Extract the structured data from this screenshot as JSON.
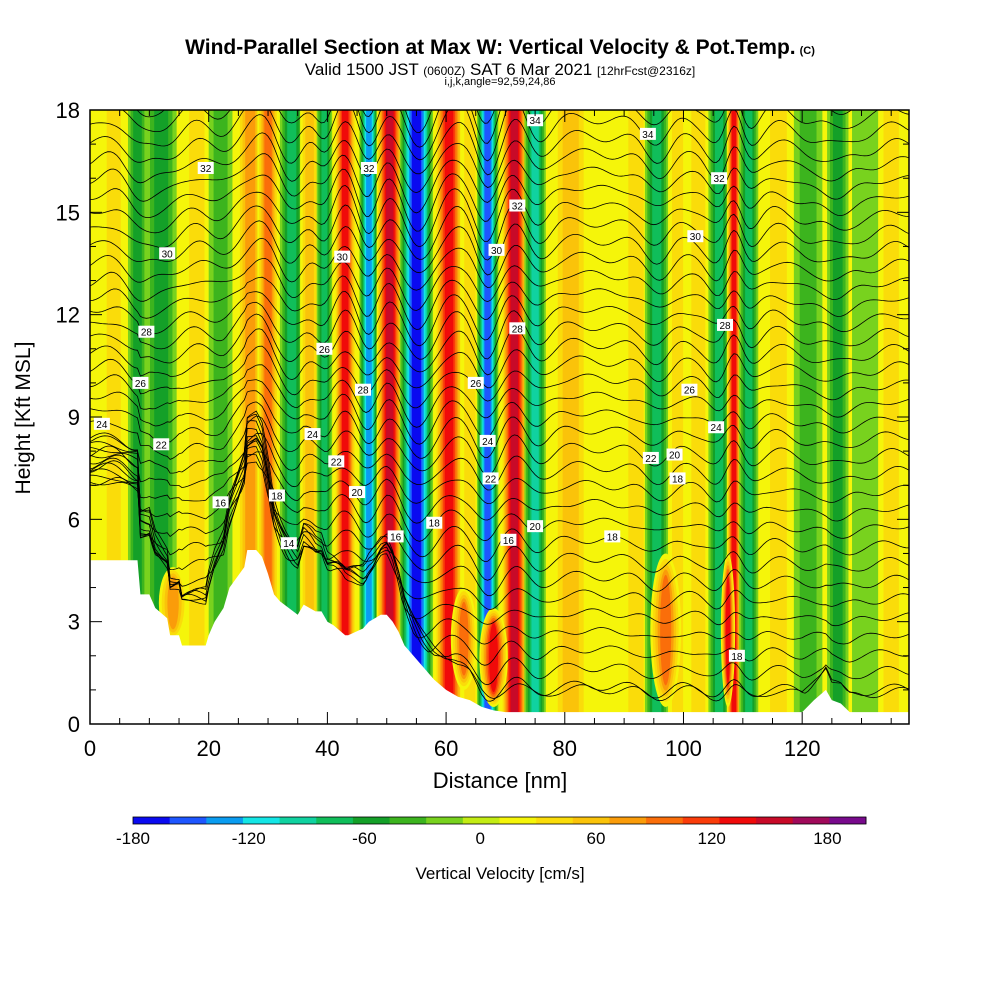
{
  "header": {
    "title": "Wind-Parallel Section at Max W: Vertical Velocity & Pot.Temp.",
    "copyright": "(C)",
    "valid_prefix": "Valid 1500 JST",
    "valid_utc": "(0600Z)",
    "valid_date": "SAT 6 Mar 2021",
    "valid_fcst": "[12hrFcst@2316z]",
    "ijk": "i,j,k,angle=92,59,24,86"
  },
  "chart_data": {
    "type": "heatmap",
    "xlabel": "Distance [nm]",
    "ylabel": "Height [Kft MSL]",
    "xlim": [
      0,
      138
    ],
    "ylim": [
      0,
      18
    ],
    "x_ticks": [
      0,
      20,
      40,
      60,
      80,
      100,
      120
    ],
    "y_ticks": [
      0,
      3,
      6,
      9,
      12,
      15,
      18
    ],
    "field": "Vertical Velocity",
    "colorbar": {
      "label": "Vertical Velocity [cm/s]",
      "range": [
        -180,
        200
      ],
      "tick_values": [
        -180,
        -120,
        -60,
        0,
        60,
        120,
        180
      ],
      "colors": [
        "#0a0af0",
        "#1e56ff",
        "#0a9cf0",
        "#14e6e6",
        "#10d2a0",
        "#10be5a",
        "#14a028",
        "#3cb41e",
        "#78d21e",
        "#c3ec14",
        "#f5f50a",
        "#fadc0a",
        "#fac30a",
        "#fa9c0a",
        "#fa6e0a",
        "#fa3c0a",
        "#f00a0a",
        "#c80a28",
        "#a00a5a",
        "#780a8c"
      ]
    },
    "terrain_profile": {
      "x": [
        0,
        8,
        8.5,
        10,
        11,
        13,
        13.5,
        15,
        15.5,
        19.5,
        20,
        21,
        22.5,
        23.5,
        26,
        26.5,
        28,
        29,
        30,
        31,
        32,
        33.5,
        35,
        36,
        38,
        39,
        40,
        41,
        43,
        43.5,
        46,
        47,
        49,
        50,
        51,
        52,
        53,
        54,
        56,
        58,
        60,
        62,
        64,
        66,
        68,
        70,
        72,
        80,
        90,
        100,
        110,
        120,
        122,
        124,
        125,
        126.5,
        128,
        130,
        138
      ],
      "y": [
        4.8,
        4.8,
        3.8,
        3.8,
        3.4,
        3.1,
        2.6,
        2.6,
        2.3,
        2.3,
        2.6,
        3.0,
        3.4,
        4.0,
        4.6,
        5.1,
        5.1,
        4.9,
        4.4,
        3.8,
        3.6,
        3.4,
        3.2,
        3.5,
        3.3,
        3.3,
        3.0,
        2.9,
        2.6,
        2.6,
        2.8,
        3.0,
        3.2,
        3.2,
        3.0,
        2.7,
        2.3,
        2.1,
        1.7,
        1.3,
        1.0,
        0.8,
        0.7,
        0.5,
        0.4,
        0.35,
        0.35,
        0.35,
        0.35,
        0.35,
        0.35,
        0.35,
        0.7,
        1.0,
        0.7,
        0.6,
        0.35,
        0.35,
        0.35
      ]
    },
    "velocity_columns": [
      {
        "x": 4,
        "width": 2.0,
        "value": 45
      },
      {
        "x": 8,
        "width": 1.6,
        "value": -50
      },
      {
        "x": 12,
        "width": 2.6,
        "value": -55
      },
      {
        "x": 18,
        "width": 2.2,
        "value": 40
      },
      {
        "x": 22,
        "width": 2.0,
        "value": -30
      },
      {
        "x": 27,
        "width": 2.2,
        "value": 75
      },
      {
        "x": 30,
        "width": 1.8,
        "value": 90
      },
      {
        "x": 34,
        "width": 2.0,
        "value": -85
      },
      {
        "x": 37,
        "width": 1.6,
        "value": 55
      },
      {
        "x": 39.5,
        "width": 1.3,
        "value": -70
      },
      {
        "x": 43,
        "width": 1.8,
        "value": 140
      },
      {
        "x": 47,
        "width": 1.6,
        "value": -140
      },
      {
        "x": 50.5,
        "width": 2.2,
        "value": 160
      },
      {
        "x": 55,
        "width": 2.8,
        "value": -180
      },
      {
        "x": 60.5,
        "width": 2.4,
        "value": 130
      },
      {
        "x": 64,
        "width": 1.6,
        "value": 40
      },
      {
        "x": 67,
        "width": 1.8,
        "value": -160
      },
      {
        "x": 71.5,
        "width": 2.2,
        "value": 150
      },
      {
        "x": 75,
        "width": 1.8,
        "value": -90
      },
      {
        "x": 81,
        "width": 3.0,
        "value": 55
      },
      {
        "x": 87,
        "width": 2.4,
        "value": 25
      },
      {
        "x": 92,
        "width": 2.2,
        "value": 45
      },
      {
        "x": 95.5,
        "width": 2.0,
        "value": -75
      },
      {
        "x": 99,
        "width": 1.6,
        "value": 40
      },
      {
        "x": 102.5,
        "width": 2.0,
        "value": 35
      },
      {
        "x": 106,
        "width": 1.8,
        "value": -80
      },
      {
        "x": 108.5,
        "width": 1.2,
        "value": 140
      },
      {
        "x": 111,
        "width": 1.6,
        "value": -70
      },
      {
        "x": 116,
        "width": 2.4,
        "value": 35
      },
      {
        "x": 121,
        "width": 2.4,
        "value": -35
      },
      {
        "x": 126,
        "width": 1.8,
        "value": -50
      },
      {
        "x": 131,
        "width": 2.6,
        "value": -25
      },
      {
        "x": 135,
        "width": 2.2,
        "value": 30
      }
    ],
    "low_level_updrafts": [
      {
        "x": 68,
        "width": 2.4,
        "y0": 0.5,
        "y1": 3.4,
        "value": 130
      },
      {
        "x": 97,
        "width": 2.6,
        "y0": 0.5,
        "y1": 5.0,
        "value": 100
      },
      {
        "x": 107.5,
        "width": 1.2,
        "y0": 0.5,
        "y1": 5.0,
        "value": 130
      },
      {
        "x": 14,
        "width": 2.4,
        "y0": 2.5,
        "y1": 4.6,
        "value": 85
      },
      {
        "x": 63,
        "width": 2.2,
        "y0": 1.0,
        "y1": 4.0,
        "value": 95
      }
    ],
    "contour_labels": [
      {
        "x": 19.5,
        "y": 16.3,
        "text": "32"
      },
      {
        "x": 13,
        "y": 13.8,
        "text": "30"
      },
      {
        "x": 9.5,
        "y": 11.5,
        "text": "28"
      },
      {
        "x": 8.5,
        "y": 10.0,
        "text": "26"
      },
      {
        "x": 2,
        "y": 8.8,
        "text": "24"
      },
      {
        "x": 12,
        "y": 8.2,
        "text": "22"
      },
      {
        "x": 22,
        "y": 6.5,
        "text": "16"
      },
      {
        "x": 31.5,
        "y": 6.7,
        "text": "18"
      },
      {
        "x": 33.5,
        "y": 5.3,
        "text": "14"
      },
      {
        "x": 39.5,
        "y": 11.0,
        "text": "26"
      },
      {
        "x": 37.5,
        "y": 8.5,
        "text": "24"
      },
      {
        "x": 41.5,
        "y": 7.7,
        "text": "22"
      },
      {
        "x": 45,
        "y": 6.8,
        "text": "20"
      },
      {
        "x": 46,
        "y": 9.8,
        "text": "28"
      },
      {
        "x": 42.5,
        "y": 13.7,
        "text": "30"
      },
      {
        "x": 47,
        "y": 16.3,
        "text": "32"
      },
      {
        "x": 51.5,
        "y": 5.5,
        "text": "16"
      },
      {
        "x": 58,
        "y": 5.9,
        "text": "18"
      },
      {
        "x": 65,
        "y": 10.0,
        "text": "26"
      },
      {
        "x": 67,
        "y": 8.3,
        "text": "24"
      },
      {
        "x": 67.5,
        "y": 7.2,
        "text": "22"
      },
      {
        "x": 70.5,
        "y": 5.4,
        "text": "16"
      },
      {
        "x": 75,
        "y": 5.8,
        "text": "20"
      },
      {
        "x": 68.5,
        "y": 13.9,
        "text": "30"
      },
      {
        "x": 72,
        "y": 11.6,
        "text": "28"
      },
      {
        "x": 72,
        "y": 15.2,
        "text": "32"
      },
      {
        "x": 75,
        "y": 17.7,
        "text": "34"
      },
      {
        "x": 94,
        "y": 17.3,
        "text": "34"
      },
      {
        "x": 106,
        "y": 16.0,
        "text": "32"
      },
      {
        "x": 102,
        "y": 14.3,
        "text": "30"
      },
      {
        "x": 107,
        "y": 11.7,
        "text": "28"
      },
      {
        "x": 101,
        "y": 9.8,
        "text": "26"
      },
      {
        "x": 105.5,
        "y": 8.7,
        "text": "24"
      },
      {
        "x": 94.5,
        "y": 7.8,
        "text": "22"
      },
      {
        "x": 98.5,
        "y": 7.9,
        "text": "20"
      },
      {
        "x": 99,
        "y": 7.2,
        "text": "18"
      },
      {
        "x": 88,
        "y": 5.5,
        "text": "18"
      },
      {
        "x": 109,
        "y": 2.0,
        "text": "18"
      }
    ]
  }
}
